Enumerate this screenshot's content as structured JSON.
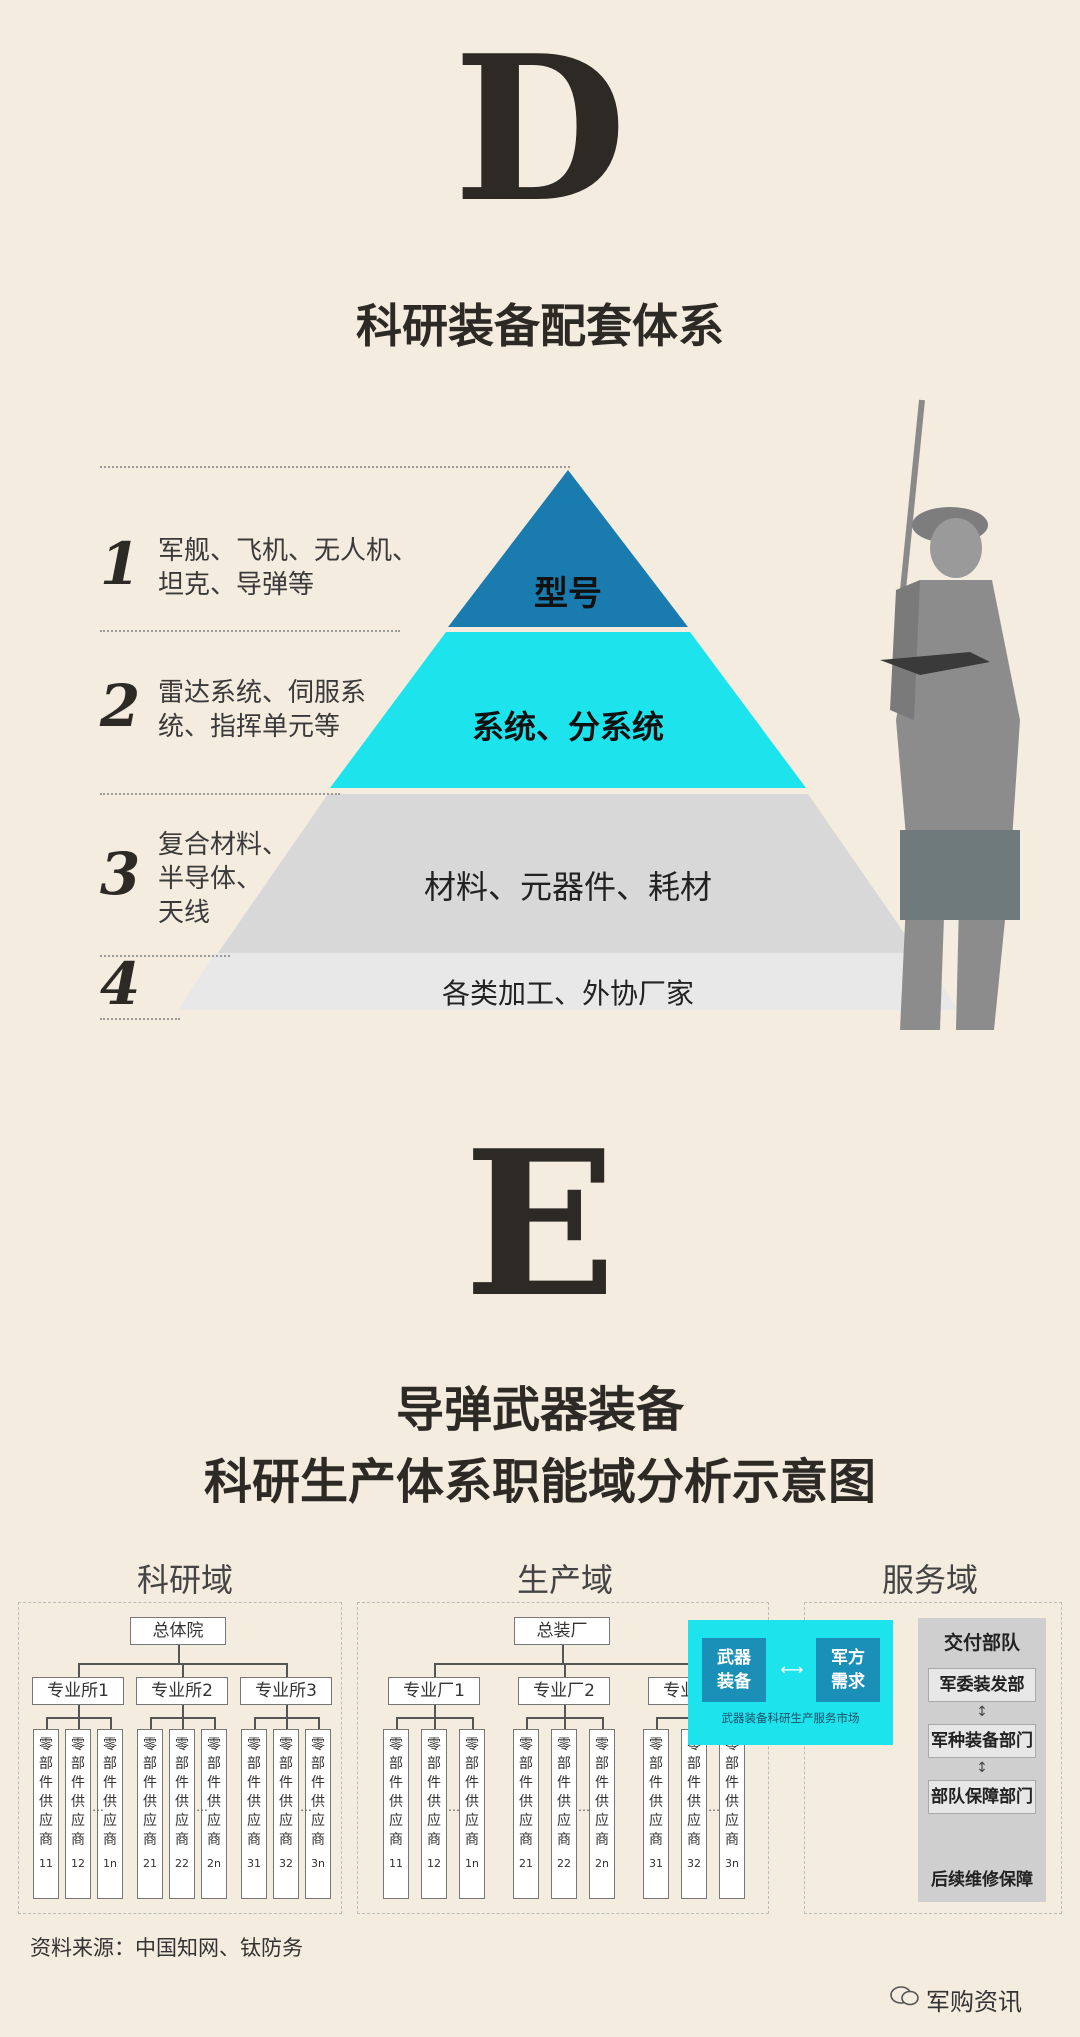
{
  "section_d": {
    "letter": "D",
    "title": "科研装备配套体系",
    "rows": [
      {
        "num": "1",
        "desc_lines": [
          "军舰、飞机、无人机、",
          "坦克、导弹等"
        ],
        "tier": "型号"
      },
      {
        "num": "2",
        "desc_lines": [
          "雷达系统、伺服系",
          "统、指挥单元等"
        ],
        "tier": "系统、分系统"
      },
      {
        "num": "3",
        "desc_lines": [
          "复合材料、",
          "半导体、",
          "天线"
        ],
        "tier": "材料、元器件、耗材"
      },
      {
        "num": "4",
        "desc_lines": [],
        "tier": "各类加工、外协厂家"
      }
    ],
    "colors": {
      "tier1": "#1a7bae",
      "tier2": "#1de3ec",
      "tier3": "#d8d8d8",
      "tier4": "#e8e8e8"
    }
  },
  "section_e": {
    "letter": "E",
    "title_line1": "导弹武器装备",
    "title_line2": "科研生产体系职能域分析示意图",
    "research": {
      "label": "科研域",
      "top": "总体院",
      "groups": [
        {
          "name": "专业所1",
          "suppliers": [
            "11",
            "12",
            "1n"
          ]
        },
        {
          "name": "专业所2",
          "suppliers": [
            "21",
            "22",
            "2n"
          ]
        },
        {
          "name": "专业所3",
          "suppliers": [
            "31",
            "32",
            "3n"
          ]
        }
      ]
    },
    "production": {
      "label": "生产域",
      "top": "总装厂",
      "groups": [
        {
          "name": "专业厂1",
          "suppliers": [
            "11",
            "12",
            "1n"
          ]
        },
        {
          "name": "专业厂2",
          "suppliers": [
            "21",
            "22",
            "2n"
          ]
        },
        {
          "name": "专业厂3",
          "suppliers": [
            "31",
            "32",
            "3n"
          ]
        }
      ]
    },
    "supplier_chars": [
      "零",
      "部",
      "件",
      "供",
      "应",
      "商"
    ],
    "ellipsis": "…",
    "market": {
      "left": "武器\n装备",
      "right": "军方\n需求",
      "caption": "武器装备科研生产服务市场",
      "color": "#1de3ec",
      "inner_color": "#1a8fb8"
    },
    "service": {
      "label": "服务域",
      "header": "交付部队",
      "items": [
        "军委装发部",
        "军种装备部门",
        "部队保障部门"
      ],
      "footer": "后续维修保障"
    }
  },
  "footer": {
    "source": "资料来源：中国知网、钛防务",
    "brand": "军购资讯",
    "brand_icon": "wechat-icon"
  }
}
